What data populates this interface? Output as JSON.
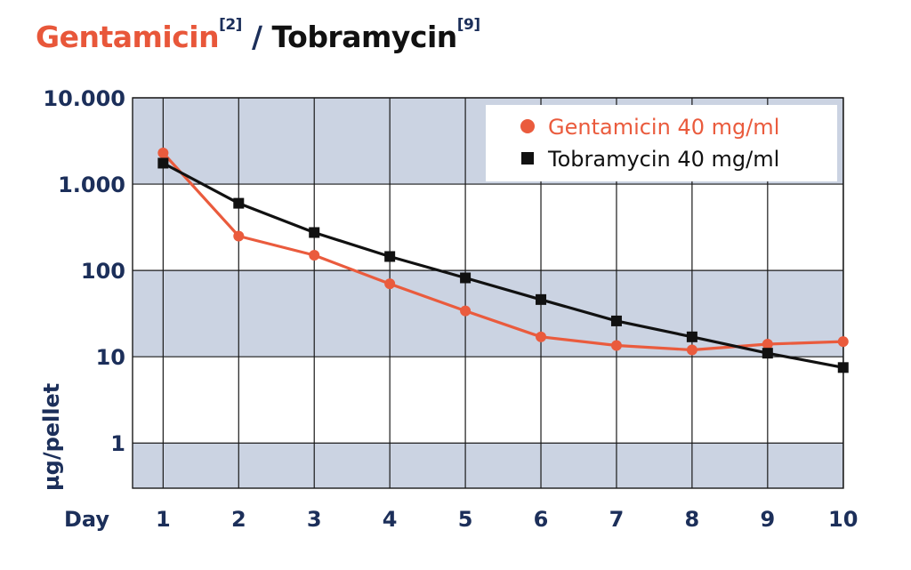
{
  "title": {
    "part1": "Gentamicin",
    "ref1": "[2]",
    "separator": "/",
    "part2": "Tobramycin",
    "ref2": "[9]"
  },
  "colors": {
    "gentamicin": "#ea5b3d",
    "tobramycin": "#111111",
    "band": "#cbd3e2",
    "axis_text": "#1c2f5a"
  },
  "chart_data": {
    "type": "line",
    "title": "Gentamicin [2] / Tobramycin [9]",
    "xlabel": "Day",
    "ylabel": "µg/pellet",
    "yscale": "log",
    "ylim": [
      0.3,
      10000
    ],
    "x": [
      1,
      2,
      3,
      4,
      5,
      6,
      7,
      8,
      9,
      10
    ],
    "x_tick_labels": [
      "1",
      "2",
      "3",
      "4",
      "5",
      "6",
      "7",
      "8",
      "9",
      "10"
    ],
    "y_ticks": [
      1,
      10,
      100,
      1000,
      10000
    ],
    "y_tick_labels": [
      "1",
      "10",
      "100",
      "1.000",
      "10.000"
    ],
    "grid": true,
    "legend_position": "top-right",
    "series": [
      {
        "name": "Gentamicin 40 mg/ml",
        "marker": "circle",
        "values": [
          2300,
          250,
          150,
          70,
          34,
          17,
          13.5,
          12,
          14,
          15
        ]
      },
      {
        "name": "Tobramycin 40 mg/ml",
        "marker": "square",
        "values": [
          1750,
          600,
          275,
          145,
          82,
          46,
          26,
          17,
          11,
          7.5
        ]
      }
    ]
  }
}
